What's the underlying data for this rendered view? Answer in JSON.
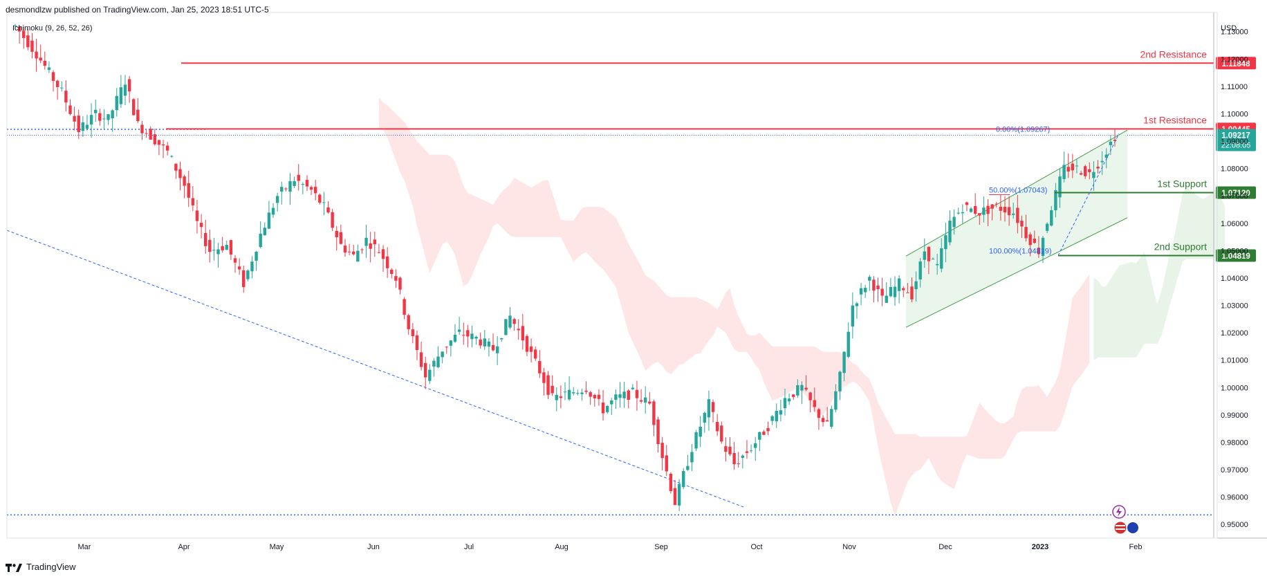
{
  "header": {
    "published": "desmondlzw published on TradingView.com, Jan 25, 2023 18:51 UTC-5"
  },
  "indicator": {
    "label": "Ichimoku (9, 26, 52, 26)"
  },
  "footer": {
    "brand": "TradingView"
  },
  "colors": {
    "up": "#26a69a",
    "down": "#f23645",
    "resistance": "#f23645",
    "support": "#2e7d32",
    "cloud_bear": "#fde2e0",
    "cloud_bull": "#e4f2e4",
    "trend_blue": "#2962ff",
    "axis_text": "#131722"
  },
  "chart_data": {
    "type": "candlestick",
    "symbol_currency": "USD",
    "ylim": [
      0.945,
      1.137
    ],
    "y_ticks": [
      "1.13000",
      "1.12000",
      "1.11000",
      "1.10000",
      "1.09000",
      "1.08000",
      "1.07000",
      "1.06000",
      "1.05000",
      "1.04000",
      "1.03000",
      "1.02000",
      "1.01000",
      "1.00000",
      "0.99000",
      "0.98000",
      "0.97000",
      "0.96000",
      "0.95000"
    ],
    "x_ticks": [
      "Mar",
      "Apr",
      "May",
      "Jun",
      "Jul",
      "Aug",
      "Sep",
      "Oct",
      "Nov",
      "Dec",
      "2023",
      "Feb"
    ],
    "levels": [
      {
        "name": "2nd Resistance",
        "value": 1.11848,
        "label": "1.11848",
        "kind": "resistance"
      },
      {
        "name": "1st Resistance",
        "value": 1.09445,
        "label": "1.09445",
        "kind": "resistance"
      },
      {
        "name": "1st Support",
        "value": 1.0712,
        "label": "1.07120",
        "kind": "support"
      },
      {
        "name": "2nd Support",
        "value": 1.04819,
        "label": "1.04819",
        "kind": "support"
      }
    ],
    "current_price": {
      "value": 1.09217,
      "label": "1.09217",
      "countdown": "22:08:05"
    },
    "fibonacci": [
      {
        "label": "0.00%(1.09267)",
        "value": 1.09267
      },
      {
        "label": "50.00%(1.07043)",
        "value": 1.07043
      },
      {
        "label": "100.00%(1.04819)",
        "value": 1.04819
      }
    ],
    "bottom_level": 0.9535,
    "waypoints": [
      [
        0,
        1.132
      ],
      [
        10,
        1.122
      ],
      [
        22,
        1.108
      ],
      [
        30,
        1.094
      ],
      [
        38,
        1.1
      ],
      [
        44,
        1.098
      ],
      [
        52,
        1.112
      ],
      [
        58,
        1.096
      ],
      [
        64,
        1.092
      ],
      [
        72,
        1.086
      ],
      [
        80,
        1.074
      ],
      [
        86,
        1.06
      ],
      [
        92,
        1.05
      ],
      [
        100,
        1.052
      ],
      [
        108,
        1.038
      ],
      [
        116,
        1.056
      ],
      [
        124,
        1.07
      ],
      [
        132,
        1.076
      ],
      [
        140,
        1.072
      ],
      [
        146,
        1.066
      ],
      [
        154,
        1.052
      ],
      [
        160,
        1.048
      ],
      [
        166,
        1.054
      ],
      [
        172,
        1.05
      ],
      [
        180,
        1.04
      ],
      [
        186,
        1.022
      ],
      [
        194,
        1.004
      ],
      [
        202,
        1.014
      ],
      [
        210,
        1.02
      ],
      [
        218,
        1.018
      ],
      [
        226,
        1.014
      ],
      [
        234,
        1.026
      ],
      [
        240,
        1.018
      ],
      [
        248,
        1.006
      ],
      [
        254,
        0.996
      ],
      [
        262,
        0.998
      ],
      [
        270,
        1.0
      ],
      [
        278,
        0.992
      ],
      [
        284,
        0.996
      ],
      [
        292,
        0.998
      ],
      [
        300,
        0.994
      ],
      [
        306,
        0.975
      ],
      [
        312,
        0.958
      ],
      [
        320,
        0.978
      ],
      [
        328,
        0.994
      ],
      [
        334,
        0.98
      ],
      [
        340,
        0.972
      ],
      [
        348,
        0.978
      ],
      [
        356,
        0.986
      ],
      [
        364,
        0.996
      ],
      [
        372,
        1.0
      ],
      [
        378,
        0.992
      ],
      [
        384,
        0.986
      ],
      [
        390,
        1.004
      ],
      [
        396,
        1.03
      ],
      [
        404,
        1.04
      ],
      [
        410,
        1.032
      ],
      [
        418,
        1.038
      ],
      [
        424,
        1.034
      ],
      [
        430,
        1.05
      ],
      [
        436,
        1.044
      ],
      [
        442,
        1.06
      ],
      [
        448,
        1.066
      ],
      [
        456,
        1.064
      ],
      [
        464,
        1.066
      ],
      [
        472,
        1.064
      ],
      [
        478,
        1.056
      ],
      [
        484,
        1.05
      ],
      [
        490,
        1.066
      ],
      [
        496,
        1.08
      ],
      [
        502,
        1.08
      ],
      [
        508,
        1.078
      ],
      [
        514,
        1.084
      ],
      [
        520,
        1.092
      ]
    ]
  }
}
